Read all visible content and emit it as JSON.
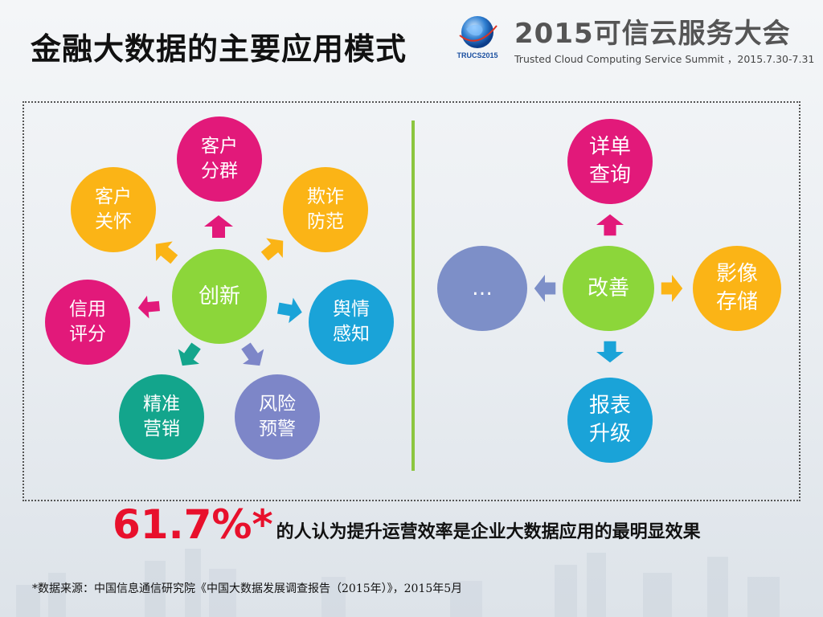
{
  "header": {
    "title": "金融大数据的主要应用模式",
    "conference_title": "2015可信云服务大会",
    "conference_sub": "Trusted Cloud Computing Service Summit ，2015.7.30-7.31",
    "logo_text": "TRUCS2015"
  },
  "left_diagram": {
    "center": {
      "label": "创新",
      "color": "#8cd63a"
    },
    "nodes": [
      {
        "label": "客户\n分群",
        "color": "#e2197a"
      },
      {
        "label": "欺诈\n防范",
        "color": "#fbb416"
      },
      {
        "label": "舆情\n感知",
        "color": "#1aa3d8"
      },
      {
        "label": "风险\n预警",
        "color": "#7d86c8"
      },
      {
        "label": "精准\n营销",
        "color": "#13a58c"
      },
      {
        "label": "信用\n评分",
        "color": "#e2197a"
      },
      {
        "label": "客户\n关怀",
        "color": "#fbb416"
      }
    ]
  },
  "right_diagram": {
    "center": {
      "label": "改善",
      "color": "#8cd63a"
    },
    "nodes": [
      {
        "label": "详单\n查询",
        "color": "#e2197a"
      },
      {
        "label": "影像\n存储",
        "color": "#fbb416"
      },
      {
        "label": "报表\n升级",
        "color": "#1aa3d8"
      },
      {
        "label": "…",
        "color": "#7d8fc8"
      }
    ]
  },
  "stat": {
    "value": "61.7%*",
    "text": "的人认为提升运营效率是企业大数据应用的最明显效果"
  },
  "source": "*数据来源：中国信息通信研究院《中国大数据发展调查报告（2015年）》，2015年5月"
}
